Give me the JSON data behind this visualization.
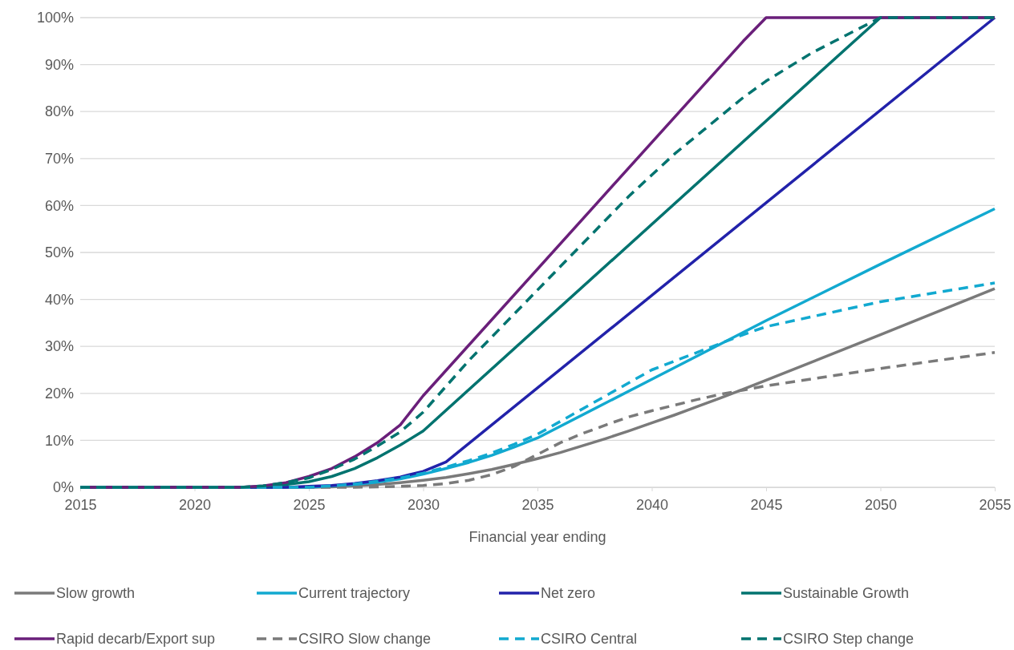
{
  "chart_data": {
    "type": "line",
    "xlabel": "Financial year ending",
    "xlim": [
      2015,
      2055
    ],
    "xticks": [
      2015,
      2020,
      2025,
      2030,
      2035,
      2040,
      2045,
      2050,
      2055
    ],
    "ylim": [
      0,
      100
    ],
    "yticks": [
      {
        "value": 0,
        "label": "0%"
      },
      {
        "value": 10,
        "label": "10%"
      },
      {
        "value": 20,
        "label": "20%"
      },
      {
        "value": 30,
        "label": "30%"
      },
      {
        "value": 40,
        "label": "40%"
      },
      {
        "value": 50,
        "label": "50%"
      },
      {
        "value": 60,
        "label": "60%"
      },
      {
        "value": 70,
        "label": "70%"
      },
      {
        "value": 80,
        "label": "80%"
      },
      {
        "value": 90,
        "label": "90%"
      },
      {
        "value": 100,
        "label": "100%"
      }
    ],
    "grid": "y",
    "legend": "bottom",
    "marker": "none",
    "series": [
      {
        "name": "Slow growth",
        "color": "#7a7a7a",
        "line_style": "solid",
        "x": [
          2015,
          2025,
          2026,
          2027,
          2028,
          2029,
          2030,
          2031,
          2032,
          2033,
          2034,
          2035,
          2036,
          2037,
          2038,
          2039,
          2040,
          2041,
          2042,
          2043,
          2044,
          2045,
          2050,
          2055
        ],
        "values": [
          0,
          0,
          0.1,
          0.3,
          0.6,
          1,
          1.5,
          2.1,
          2.9,
          3.8,
          4.9,
          6.1,
          7.4,
          8.9,
          10.4,
          12,
          13.7,
          15.4,
          17.2,
          19,
          20.9,
          22.8,
          32.5,
          42.3
        ]
      },
      {
        "name": "Current trajectory",
        "color": "#12a9d0",
        "line_style": "solid",
        "x": [
          2015,
          2025,
          2026,
          2027,
          2028,
          2029,
          2030,
          2031,
          2032,
          2033,
          2034,
          2035,
          2040,
          2045,
          2050,
          2055
        ],
        "values": [
          0,
          0,
          0.3,
          0.6,
          1.1,
          1.8,
          2.8,
          4,
          5.3,
          6.8,
          8.6,
          10.5,
          23,
          35.5,
          47.5,
          59.3
        ]
      },
      {
        "name": "Net zero",
        "color": "#2222aa",
        "line_style": "solid",
        "x": [
          2015,
          2024,
          2025,
          2026,
          2027,
          2028,
          2029,
          2030,
          2031,
          2055
        ],
        "values": [
          0,
          0,
          0.2,
          0.4,
          0.8,
          1.4,
          2.2,
          3.4,
          5.4,
          100
        ]
      },
      {
        "name": "Sustainable Growth",
        "color": "#00736f",
        "line_style": "solid",
        "x": [
          2015,
          2022,
          2023,
          2024,
          2025,
          2026,
          2027,
          2028,
          2029,
          2030,
          2050,
          2055
        ],
        "values": [
          0,
          0,
          0.2,
          0.6,
          1.2,
          2.3,
          4,
          6.3,
          9,
          12,
          100,
          100
        ]
      },
      {
        "name": "Rapid decarb/Export sup",
        "color": "#6a1f7a",
        "line_style": "solid",
        "x": [
          2015,
          2022,
          2023,
          2024,
          2025,
          2026,
          2027,
          2028,
          2029,
          2030,
          2044,
          2045,
          2055
        ],
        "values": [
          0,
          0,
          0.3,
          1,
          2.3,
          4,
          6.5,
          9.5,
          13.3,
          19.5,
          95,
          100,
          100
        ]
      },
      {
        "name": "CSIRO Slow change",
        "color": "#7a7a7a",
        "line_style": "dashed",
        "x": [
          2015,
          2027,
          2028,
          2029,
          2030,
          2031,
          2032,
          2033,
          2034,
          2035,
          2036,
          2037,
          2038,
          2039,
          2040,
          2041,
          2042,
          2043,
          2044,
          2045,
          2050,
          2055
        ],
        "values": [
          0,
          0,
          0.1,
          0.2,
          0.4,
          0.8,
          1.5,
          2.7,
          4.5,
          7,
          9.5,
          11.5,
          13.3,
          15,
          16.3,
          17.5,
          18.7,
          19.8,
          20.7,
          21.6,
          25.3,
          28.7
        ]
      },
      {
        "name": "CSIRO Central",
        "color": "#12a9d0",
        "line_style": "dashed",
        "x": [
          2015,
          2025,
          2026,
          2027,
          2028,
          2029,
          2030,
          2031,
          2032,
          2033,
          2034,
          2035,
          2040,
          2044,
          2045,
          2050,
          2055
        ],
        "values": [
          0,
          0,
          0.3,
          0.7,
          1.3,
          2,
          3,
          4.3,
          5.7,
          7.3,
          9.2,
          11.3,
          25,
          32.5,
          34.2,
          39.5,
          43.5
        ]
      },
      {
        "name": "CSIRO Step change",
        "color": "#00736f",
        "line_style": "dashed",
        "x": [
          2015,
          2022,
          2023,
          2024,
          2025,
          2026,
          2027,
          2028,
          2029,
          2030,
          2031,
          2032,
          2033,
          2034,
          2035,
          2036,
          2037,
          2038,
          2039,
          2040,
          2041,
          2042,
          2043,
          2044,
          2045,
          2046,
          2047,
          2048,
          2049,
          2050,
          2055
        ],
        "values": [
          0,
          0,
          0.3,
          1,
          2,
          3.8,
          6,
          8.8,
          11.8,
          16,
          21.5,
          27,
          32,
          37,
          42,
          47,
          52,
          57,
          62,
          66.5,
          71,
          75,
          79,
          83,
          86.5,
          89.5,
          92.5,
          95,
          97.5,
          100,
          100
        ]
      }
    ]
  }
}
